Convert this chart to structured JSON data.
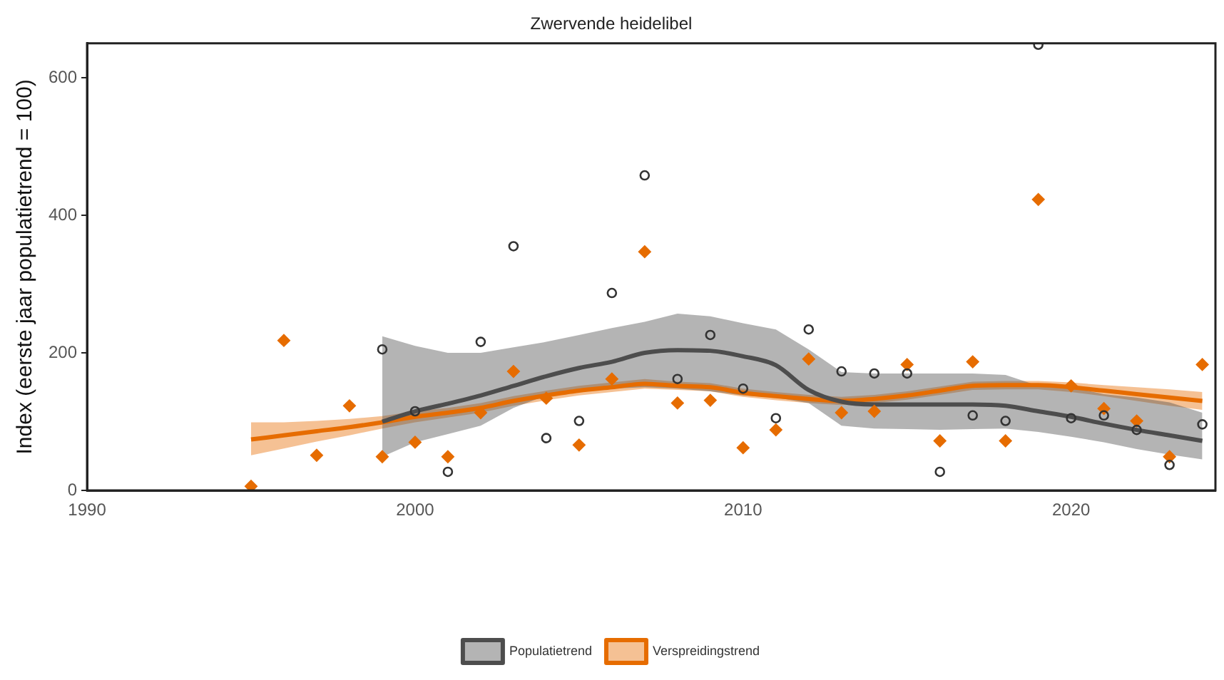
{
  "chart_data": {
    "type": "line",
    "title": "Zwervende heidelibel",
    "ylabel": "Index (eerste jaar populatietrend = 100)",
    "xlim": [
      1990,
      2024.4
    ],
    "xticks": [
      1990,
      2000,
      2010,
      2020
    ],
    "ylim": [
      0,
      650
    ],
    "yticks": [
      0,
      200,
      400,
      600
    ],
    "grid": false,
    "legend": "bottom",
    "series": [
      {
        "name": "Populatietrend",
        "color": "#4d4d4d",
        "marker": "none",
        "x": [
          1999,
          2000,
          2001,
          2002,
          2003,
          2004,
          2005,
          2006,
          2007,
          2008,
          2009,
          2010,
          2011,
          2012,
          2013,
          2014,
          2015,
          2016,
          2017,
          2018,
          2019,
          2020,
          2021,
          2022,
          2023,
          2024
        ],
        "values": [
          100,
          115,
          126,
          138,
          152,
          166,
          178,
          187,
          200,
          204,
          203,
          195,
          182,
          146,
          129,
          125,
          125,
          125,
          125,
          123,
          115,
          107,
          97,
          88,
          80,
          72
        ],
        "lower": [
          49,
          70,
          82,
          94,
          120,
          138,
          144,
          148,
          150,
          148,
          144,
          138,
          135,
          127,
          94,
          90,
          89,
          88,
          89,
          90,
          85,
          78,
          70,
          60,
          52,
          45
        ],
        "upper": [
          224,
          210,
          200,
          200,
          208,
          216,
          226,
          236,
          245,
          257,
          253,
          243,
          234,
          205,
          172,
          170,
          170,
          170,
          170,
          168,
          152,
          150,
          140,
          135,
          128,
          113
        ]
      },
      {
        "name": "Verspreidingstrend",
        "color": "#e66c00",
        "marker": "none",
        "x": [
          1995,
          1996,
          1997,
          1998,
          1999,
          2000,
          2001,
          2002,
          2003,
          2004,
          2005,
          2006,
          2007,
          2008,
          2009,
          2010,
          2011,
          2012,
          2013,
          2014,
          2015,
          2016,
          2017,
          2018,
          2019,
          2020,
          2021,
          2022,
          2023,
          2024
        ],
        "values": [
          74,
          80,
          86,
          92,
          99,
          107,
          113,
          120,
          130,
          138,
          145,
          150,
          155,
          152,
          150,
          142,
          137,
          133,
          130,
          133,
          138,
          145,
          152,
          153,
          153,
          150,
          145,
          140,
          135,
          130
        ],
        "lower": [
          51,
          61,
          71,
          80,
          90,
          99,
          106,
          113,
          123,
          131,
          138,
          143,
          148,
          146,
          144,
          136,
          131,
          127,
          124,
          127,
          132,
          139,
          146,
          147,
          147,
          143,
          137,
          130,
          123,
          117
        ],
        "upper": [
          99,
          99,
          101,
          104,
          108,
          115,
          120,
          127,
          137,
          145,
          152,
          157,
          162,
          158,
          156,
          148,
          143,
          139,
          136,
          139,
          144,
          151,
          158,
          159,
          159,
          157,
          153,
          150,
          147,
          143
        ]
      },
      {
        "type": "scatter",
        "color": "#333333",
        "marker": "circle",
        "x": [
          1999,
          2000,
          2001,
          2002,
          2003,
          2004,
          2005,
          2006,
          2007,
          2008,
          2009,
          2010,
          2011,
          2012,
          2013,
          2014,
          2015,
          2016,
          2017,
          2018,
          2019,
          2020,
          2021,
          2022,
          2023,
          2024
        ],
        "values": [
          205,
          115,
          27,
          216,
          355,
          76,
          101,
          287,
          458,
          162,
          226,
          148,
          105,
          234,
          173,
          170,
          170,
          27,
          109,
          101,
          648,
          105,
          109,
          88,
          37,
          96
        ]
      },
      {
        "type": "scatter",
        "color": "#e66c00",
        "marker": "diamond",
        "x": [
          1995,
          1996,
          1997,
          1998,
          1999,
          2000,
          2001,
          2002,
          2003,
          2004,
          2005,
          2006,
          2007,
          2008,
          2009,
          2010,
          2011,
          2012,
          2013,
          2014,
          2015,
          2016,
          2017,
          2018,
          2019,
          2020,
          2021,
          2022,
          2023,
          2024
        ],
        "values": [
          6,
          218,
          51,
          123,
          49,
          70,
          49,
          113,
          173,
          134,
          66,
          162,
          347,
          127,
          131,
          62,
          88,
          191,
          113,
          115,
          183,
          72,
          187,
          72,
          423,
          152,
          119,
          101,
          49,
          183
        ]
      }
    ]
  }
}
